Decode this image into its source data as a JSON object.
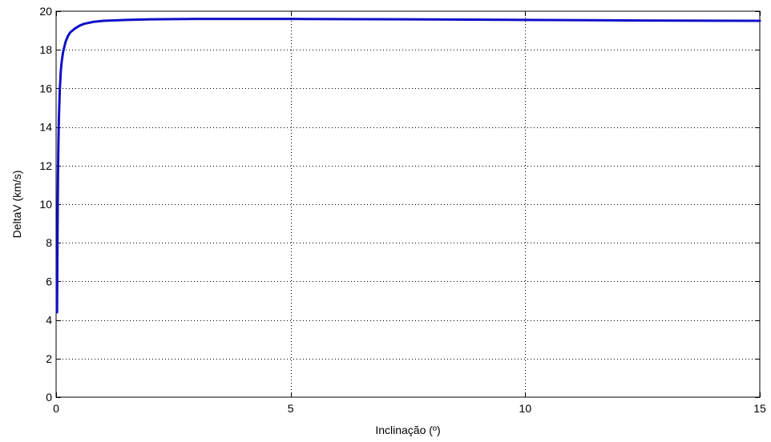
{
  "chart_data": {
    "type": "line",
    "title": "",
    "xlabel": "Inclinação (º)",
    "ylabel": "DeltaV (km/s)",
    "xlim": [
      0,
      15
    ],
    "ylim": [
      0,
      20
    ],
    "xticks": [
      0,
      5,
      10,
      15
    ],
    "yticks": [
      0,
      2,
      4,
      6,
      8,
      10,
      12,
      14,
      16,
      18,
      20
    ],
    "grid": true,
    "grid_style": "dotted",
    "line_color": "#1010c8",
    "series": [
      {
        "x": [
          0.02,
          0.03,
          0.04,
          0.05,
          0.06,
          0.08,
          0.1,
          0.12,
          0.15,
          0.2,
          0.25,
          0.3,
          0.4,
          0.5,
          0.6,
          0.8,
          1.0,
          1.5,
          2.0,
          3.0,
          5.0,
          7.5,
          10.0,
          12.5,
          15.0
        ],
        "y": [
          4.4,
          8.5,
          11.5,
          13.3,
          14.5,
          16.0,
          16.9,
          17.4,
          17.9,
          18.4,
          18.7,
          18.9,
          19.1,
          19.25,
          19.35,
          19.45,
          19.5,
          19.55,
          19.58,
          19.6,
          19.6,
          19.58,
          19.55,
          19.52,
          19.5
        ]
      }
    ]
  }
}
